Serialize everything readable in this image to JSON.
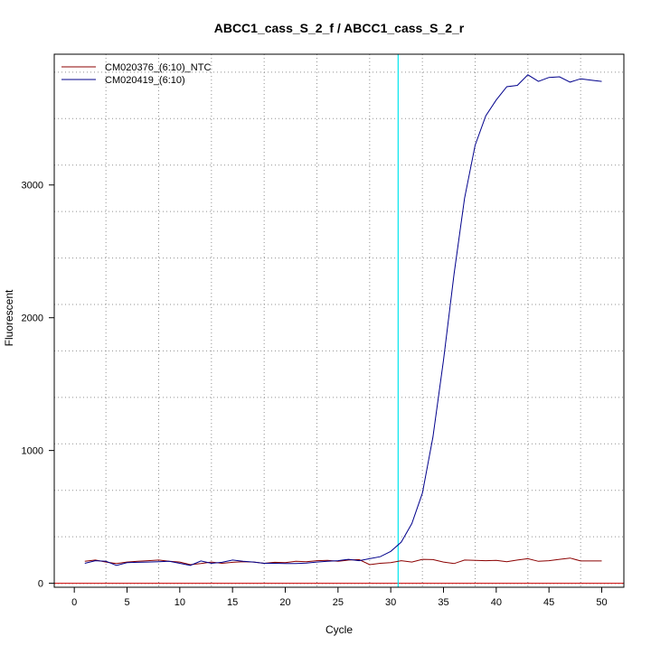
{
  "chart_data": {
    "type": "line",
    "title": "ABCC1_cass_S_2_f / ABCC1_cass_S_2_r",
    "xlabel": "Cycle",
    "ylabel": "Fluorescent",
    "xlim": [
      -1.9,
      52.1
    ],
    "ylim": [
      -30,
      3985
    ],
    "x_ticks": [
      0,
      5,
      10,
      15,
      20,
      25,
      30,
      35,
      40,
      45,
      50
    ],
    "y_ticks": [
      0,
      1000,
      2000,
      3000
    ],
    "grid": true,
    "grid_x": [
      3,
      8,
      13,
      18,
      23,
      28,
      33,
      38,
      43,
      48
    ],
    "grid_y": [
      -2,
      350,
      700,
      1050,
      1400,
      1750,
      2100,
      2450,
      2800,
      3150,
      3500,
      3850
    ],
    "threshold_x": 30.7,
    "baseline_y": 0,
    "legend_position": "top-left",
    "series": [
      {
        "name": "CM020376_(6:10)_NTC",
        "color": "#8b0000",
        "x": [
          1,
          2,
          3,
          4,
          5,
          6,
          7,
          8,
          9,
          10,
          11,
          12,
          13,
          14,
          15,
          16,
          17,
          18,
          19,
          20,
          21,
          22,
          23,
          24,
          25,
          26,
          27,
          28,
          29,
          30,
          31,
          32,
          33,
          34,
          35,
          36,
          37,
          38,
          39,
          40,
          41,
          42,
          43,
          44,
          45,
          46,
          47,
          48,
          49,
          50
        ],
        "values": [
          165,
          175,
          160,
          148,
          160,
          165,
          170,
          175,
          165,
          160,
          140,
          148,
          160,
          150,
          158,
          162,
          160,
          150,
          158,
          155,
          165,
          162,
          170,
          172,
          165,
          175,
          178,
          140,
          150,
          155,
          170,
          160,
          180,
          178,
          160,
          148,
          175,
          172,
          170,
          172,
          162,
          175,
          185,
          165,
          170,
          180,
          190,
          168,
          168,
          168
        ]
      },
      {
        "name": "CM020419_(6:10)",
        "color": "#00008b",
        "x": [
          1,
          2,
          3,
          4,
          5,
          6,
          7,
          8,
          9,
          10,
          11,
          12,
          13,
          14,
          15,
          16,
          17,
          18,
          19,
          20,
          21,
          22,
          23,
          24,
          25,
          26,
          27,
          28,
          29,
          30,
          31,
          32,
          33,
          34,
          35,
          36,
          37,
          38,
          39,
          40,
          41,
          42,
          43,
          44,
          45,
          46,
          47,
          48,
          49,
          50
        ],
        "values": [
          150,
          170,
          165,
          135,
          155,
          158,
          160,
          162,
          165,
          150,
          135,
          168,
          150,
          158,
          175,
          165,
          160,
          150,
          150,
          148,
          148,
          152,
          160,
          165,
          170,
          180,
          170,
          185,
          200,
          240,
          310,
          450,
          680,
          1100,
          1680,
          2330,
          2900,
          3300,
          3520,
          3640,
          3740,
          3750,
          3830,
          3780,
          3810,
          3815,
          3775,
          3800,
          3790,
          3780
        ]
      }
    ]
  }
}
